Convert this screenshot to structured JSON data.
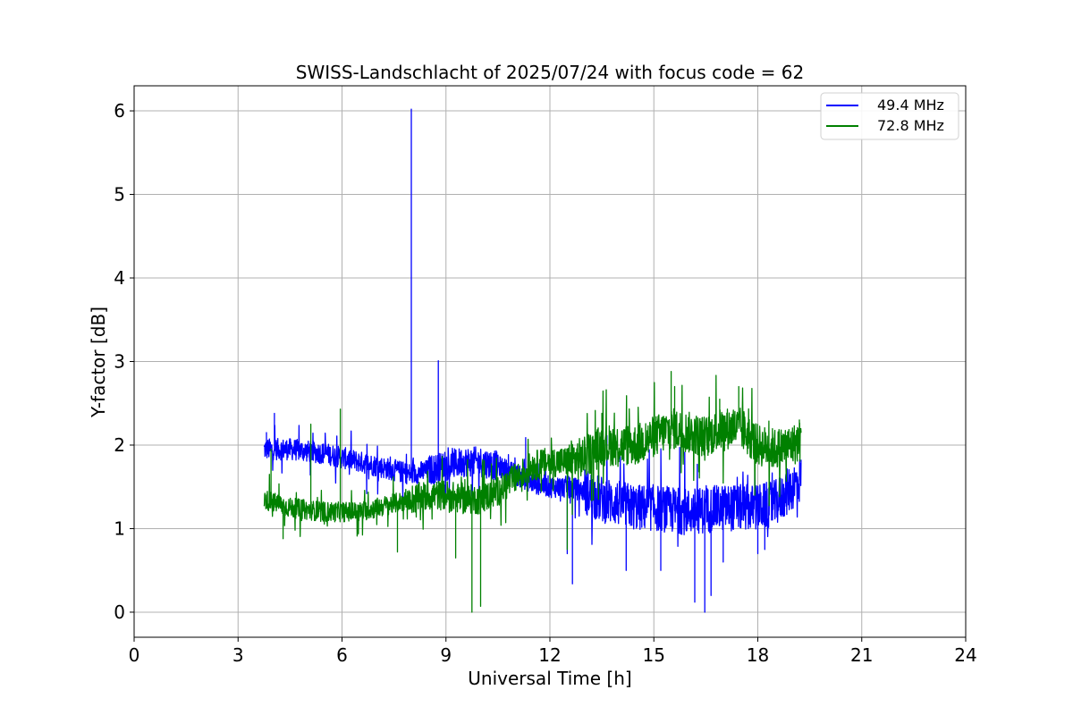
{
  "chart_data": {
    "type": "line",
    "title": "SWISS-Landschlacht of 2025/07/24 with focus code = 62",
    "xlabel": "Universal Time [h]",
    "ylabel": "Y-factor [dB]",
    "xlim": [
      0,
      24
    ],
    "ylim": [
      -0.3,
      6.3
    ],
    "xticks": [
      0,
      3,
      6,
      9,
      12,
      15,
      18,
      21,
      24
    ],
    "yticks": [
      0,
      1,
      2,
      3,
      4,
      5,
      6
    ],
    "grid": true,
    "legend_position": "top-right",
    "series": [
      {
        "name": "49.4 MHz",
        "color": "#0000ff",
        "x_start": 3.75,
        "x_end": 19.25,
        "baseline": [
          [
            3.75,
            1.95
          ],
          [
            4.5,
            1.95
          ],
          [
            5.5,
            1.9
          ],
          [
            6.5,
            1.8
          ],
          [
            7.0,
            1.75
          ],
          [
            7.5,
            1.7
          ],
          [
            8.0,
            1.65
          ],
          [
            8.5,
            1.7
          ],
          [
            9.0,
            1.75
          ],
          [
            9.5,
            1.8
          ],
          [
            10.0,
            1.8
          ],
          [
            10.5,
            1.75
          ],
          [
            11.0,
            1.65
          ],
          [
            11.5,
            1.55
          ],
          [
            12.0,
            1.5
          ],
          [
            12.5,
            1.5
          ],
          [
            13.0,
            1.45
          ],
          [
            13.5,
            1.35
          ],
          [
            14.0,
            1.3
          ],
          [
            14.5,
            1.25
          ],
          [
            15.0,
            1.25
          ],
          [
            16.0,
            1.2
          ],
          [
            17.0,
            1.25
          ],
          [
            18.0,
            1.25
          ],
          [
            18.5,
            1.3
          ],
          [
            19.0,
            1.5
          ],
          [
            19.25,
            1.6
          ]
        ],
        "spikes": [
          [
            3.82,
            2.15
          ],
          [
            4.05,
            2.38
          ],
          [
            8.0,
            6.02
          ],
          [
            8.78,
            3.01
          ],
          [
            11.3,
            2.09
          ],
          [
            12.65,
            0.34
          ],
          [
            12.5,
            0.7
          ],
          [
            14.2,
            0.5
          ],
          [
            15.2,
            0.5
          ],
          [
            16.18,
            0.12
          ],
          [
            16.47,
            0.0
          ],
          [
            16.65,
            0.2
          ],
          [
            17.0,
            0.6
          ],
          [
            18.0,
            0.7
          ],
          [
            18.2,
            0.75
          ]
        ]
      },
      {
        "name": "72.8 MHz",
        "color": "#008000",
        "x_start": 3.75,
        "x_end": 19.25,
        "baseline": [
          [
            3.75,
            1.35
          ],
          [
            4.5,
            1.25
          ],
          [
            5.5,
            1.2
          ],
          [
            6.5,
            1.2
          ],
          [
            7.0,
            1.25
          ],
          [
            7.5,
            1.3
          ],
          [
            8.0,
            1.35
          ],
          [
            8.5,
            1.4
          ],
          [
            9.0,
            1.4
          ],
          [
            9.5,
            1.35
          ],
          [
            10.0,
            1.35
          ],
          [
            10.5,
            1.45
          ],
          [
            11.0,
            1.6
          ],
          [
            11.5,
            1.75
          ],
          [
            12.0,
            1.8
          ],
          [
            12.5,
            1.8
          ],
          [
            13.0,
            1.85
          ],
          [
            13.5,
            2.0
          ],
          [
            14.0,
            2.0
          ],
          [
            14.5,
            2.0
          ],
          [
            15.0,
            2.1
          ],
          [
            15.5,
            2.2
          ],
          [
            16.0,
            2.15
          ],
          [
            16.5,
            2.1
          ],
          [
            17.0,
            2.2
          ],
          [
            17.5,
            2.2
          ],
          [
            18.0,
            2.0
          ],
          [
            18.5,
            1.95
          ],
          [
            19.0,
            2.0
          ],
          [
            19.25,
            2.05
          ]
        ],
        "spikes": [
          [
            3.95,
            1.95
          ],
          [
            4.3,
            0.88
          ],
          [
            5.1,
            2.25
          ],
          [
            5.95,
            2.43
          ],
          [
            7.6,
            0.72
          ],
          [
            9.28,
            0.65
          ],
          [
            9.75,
            0.0
          ],
          [
            10.0,
            0.07
          ],
          [
            12.5,
            0.75
          ],
          [
            13.5,
            2.38
          ],
          [
            15.5,
            2.88
          ],
          [
            15.6,
            2.7
          ],
          [
            16.9,
            2.55
          ],
          [
            17.45,
            2.7
          ],
          [
            17.6,
            2.4
          ],
          [
            19.2,
            2.3
          ]
        ]
      }
    ]
  }
}
